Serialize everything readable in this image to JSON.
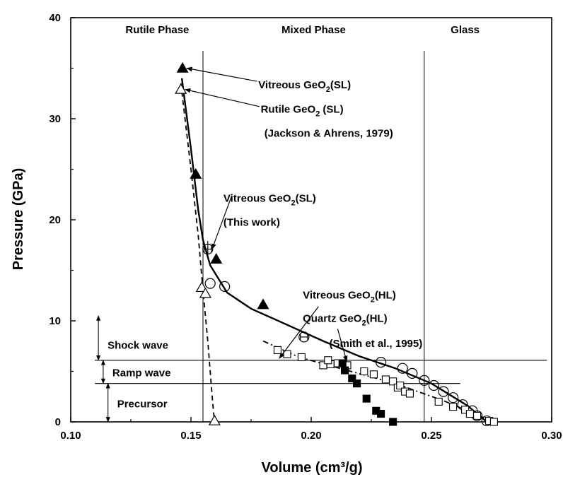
{
  "chart_data": {
    "type": "scatter",
    "title": "",
    "xlabel": "Volume (cm³/g)",
    "ylabel": "Pressure (GPa)",
    "xlim": [
      0.1,
      0.3
    ],
    "ylim": [
      0,
      40
    ],
    "xticks": [
      "0.10",
      "0.15",
      "0.20",
      "0.25",
      "0.30"
    ],
    "yticks": [
      "0",
      "10",
      "20",
      "30",
      "40"
    ],
    "grid": false,
    "legend": "none",
    "regions": [
      {
        "label": "Rutile Phase",
        "boundary_right": 0.155
      },
      {
        "label": "Mixed Phase",
        "boundary_right": 0.247
      },
      {
        "label": "Glass"
      }
    ],
    "wave_regions": [
      {
        "label": "Shock wave",
        "y_range": [
          6.1,
          10.5
        ]
      },
      {
        "label": "Ramp wave",
        "y_range": [
          3.8,
          6.1
        ]
      },
      {
        "label": "Precursor",
        "y_range": [
          0,
          3.8
        ]
      }
    ],
    "series": [
      {
        "marker": "filled-triangle",
        "points": [
          [
            0.1465,
            35.0
          ],
          [
            0.152,
            24.5
          ],
          [
            0.1605,
            16.1
          ],
          [
            0.18,
            11.6
          ]
        ]
      },
      {
        "marker": "open-triangle",
        "points": [
          [
            0.1458,
            32.9
          ],
          [
            0.1545,
            13.3
          ],
          [
            0.156,
            12.7
          ],
          [
            0.1598,
            0.1
          ]
        ]
      },
      {
        "marker": "open-circle",
        "points": [
          [
            0.157,
            17.1
          ],
          [
            0.158,
            13.7
          ],
          [
            0.164,
            13.4
          ],
          [
            0.197,
            8.4
          ],
          [
            0.229,
            5.9
          ],
          [
            0.238,
            5.3
          ],
          [
            0.242,
            4.8
          ],
          [
            0.247,
            4.1
          ],
          [
            0.251,
            3.6
          ],
          [
            0.255,
            3.0
          ],
          [
            0.259,
            2.4
          ],
          [
            0.263,
            1.7
          ],
          [
            0.267,
            1.1
          ],
          [
            0.269,
            0.6
          ],
          [
            0.273,
            0.1
          ]
        ]
      },
      {
        "marker": "open-square",
        "points": [
          [
            0.186,
            7.1
          ],
          [
            0.19,
            6.7
          ],
          [
            0.196,
            6.4
          ],
          [
            0.205,
            5.6
          ],
          [
            0.208,
            5.7
          ],
          [
            0.207,
            6.1
          ],
          [
            0.211,
            5.8
          ],
          [
            0.214,
            5.3
          ],
          [
            0.215,
            5.6
          ],
          [
            0.222,
            5.0
          ],
          [
            0.226,
            4.7
          ],
          [
            0.231,
            4.2
          ],
          [
            0.234,
            4.0
          ],
          [
            0.236,
            3.4
          ],
          [
            0.237,
            3.6
          ],
          [
            0.239,
            3.0
          ],
          [
            0.241,
            2.8
          ],
          [
            0.253,
            2.0
          ],
          [
            0.259,
            1.5
          ],
          [
            0.264,
            1.2
          ],
          [
            0.266,
            0.8
          ],
          [
            0.269,
            0.6
          ],
          [
            0.274,
            0.1
          ],
          [
            0.276,
            0.0
          ]
        ]
      },
      {
        "marker": "filled-square",
        "points": [
          [
            0.213,
            5.8
          ],
          [
            0.214,
            5.1
          ],
          [
            0.217,
            4.3
          ],
          [
            0.219,
            3.8
          ],
          [
            0.223,
            2.3
          ],
          [
            0.227,
            1.1
          ],
          [
            0.229,
            0.8
          ],
          [
            0.234,
            0.0
          ]
        ]
      }
    ],
    "fit_curves": [
      {
        "style": "solid",
        "points": [
          [
            0.1462,
            34.0
          ],
          [
            0.15,
            27.0
          ],
          [
            0.153,
            21.0
          ],
          [
            0.155,
            18.0
          ],
          [
            0.158,
            15.5
          ],
          [
            0.165,
            12.8
          ],
          [
            0.175,
            11.2
          ],
          [
            0.19,
            9.6
          ],
          [
            0.205,
            8.0
          ],
          [
            0.22,
            6.5
          ],
          [
            0.235,
            5.3
          ],
          [
            0.25,
            3.8
          ],
          [
            0.265,
            1.6
          ],
          [
            0.273,
            0.0
          ]
        ]
      },
      {
        "style": "dashed",
        "points": [
          [
            0.1458,
            33.5
          ],
          [
            0.15,
            25.0
          ],
          [
            0.153,
            18.5
          ],
          [
            0.155,
            13.0
          ],
          [
            0.157,
            8.0
          ],
          [
            0.159,
            2.0
          ],
          [
            0.1598,
            0.0
          ]
        ]
      },
      {
        "style": "dash-dot",
        "points": [
          [
            0.18,
            8.0
          ],
          [
            0.195,
            6.4
          ],
          [
            0.215,
            5.1
          ],
          [
            0.235,
            3.8
          ],
          [
            0.255,
            2.1
          ],
          [
            0.27,
            0.6
          ],
          [
            0.276,
            0.0
          ]
        ]
      }
    ],
    "horizontal_lines": [
      6.1,
      3.8
    ],
    "error_bars": [
      {
        "x": 0.157,
        "y": 17.1,
        "xerr": 0.0015,
        "yerr": 0.8
      },
      {
        "x": 0.197,
        "y": 8.4,
        "xerr": 0.0015,
        "yerr": 0.0
      }
    ],
    "annotations": [
      {
        "text": "Vitreous GeO",
        "sub": "2",
        "tail": "(SL)",
        "target": [
          0.1465,
          35.0
        ]
      },
      {
        "text": "Rutile GeO",
        "sub": "2",
        "tail": " (SL)",
        "target": [
          0.1458,
          32.9
        ]
      },
      {
        "text": "(Jackson & Ahrens, 1979)"
      },
      {
        "text": "Vitreous GeO",
        "sub": "2",
        "tail": "(SL)",
        "target": [
          0.157,
          17.1
        ]
      },
      {
        "text": "(This work)"
      },
      {
        "text": "Vitreous GeO",
        "sub": "2",
        "tail": "(HL)",
        "target": [
          0.185,
          6.3
        ]
      },
      {
        "text": "Quartz GeO",
        "sub": "2",
        "tail": "(HL)",
        "target": [
          0.213,
          6.0
        ]
      },
      {
        "text": "(Smith et al., 1995)"
      }
    ]
  }
}
